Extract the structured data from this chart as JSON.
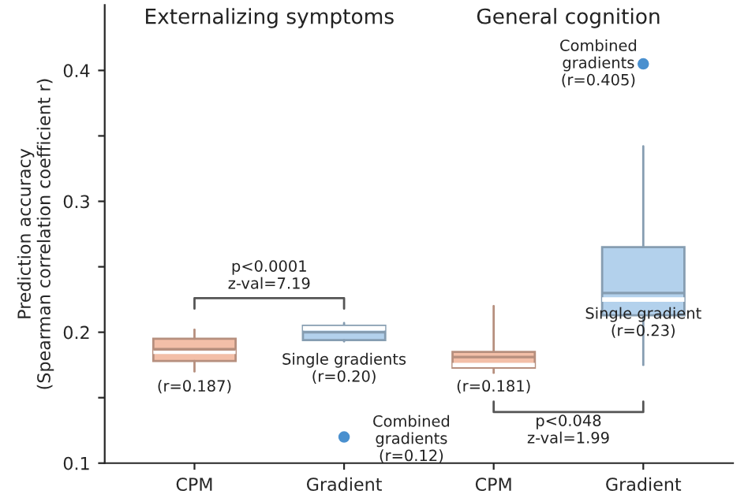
{
  "chart_data": {
    "type": "box",
    "ylabel": "Prediction accuracy\n(Spearman correlation coefficient r)",
    "categories": [
      "CPM",
      "Gradient",
      "CPM",
      "Gradient"
    ],
    "ylim": [
      0.1,
      0.45
    ],
    "yticks": [
      0.1,
      {
        "value": 0.15,
        "label": null
      },
      0.2,
      {
        "value": 0.25,
        "label": null
      },
      0.3,
      {
        "value": 0.35,
        "label": null
      },
      0.4
    ],
    "colors": [
      "#f3bfa8",
      "#b3d1ec",
      "#f3bfa8",
      "#b3d1ec"
    ],
    "boxes": [
      {
        "low": 0.17,
        "q1": 0.178,
        "median": 0.185,
        "q3": 0.195,
        "high": 0.202,
        "mean": 0.187
      },
      {
        "low": 0.193,
        "q1": 0.194,
        "median": 0.203,
        "q3": 0.205,
        "high": 0.207,
        "mean": 0.2
      },
      {
        "low": 0.169,
        "q1": 0.173,
        "median": 0.175,
        "q3": 0.185,
        "high": 0.22,
        "mean": 0.181
      },
      {
        "low": 0.175,
        "q1": 0.213,
        "median": 0.225,
        "q3": 0.265,
        "high": 0.342,
        "mean": 0.23
      }
    ],
    "series": [
      {
        "type": "scatter",
        "color": "#4a90cf",
        "values": [
          null,
          0.12,
          null,
          0.405
        ]
      }
    ],
    "annotations": [
      "Externalizing symptoms",
      "General cognition",
      "(r=0.187)",
      "Single gradients\n(r=0.20)",
      "Combined\ngradients\n(r=0.12)",
      "(r=0.181)",
      "Single gradient\n(r=0.23)",
      "Combined\ngradients\n(r=0.405)",
      "p<0.0001\nz-val=7.19",
      "p<0.048\nz-val=1.99"
    ],
    "legend": false,
    "grid": false
  }
}
